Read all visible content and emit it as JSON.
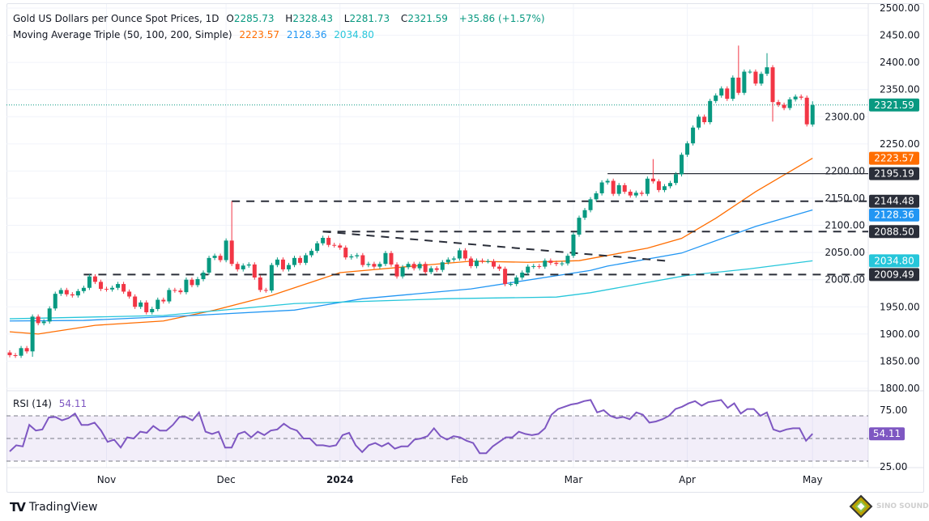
{
  "header": {
    "symbol_title": "Gold US Dollars per Ounce Spot Prices, 1D",
    "open_label": "O",
    "open": "2285.73",
    "high_label": "H",
    "high": "2328.43",
    "low_label": "L",
    "low": "2281.73",
    "close_label": "C",
    "close": "2321.59",
    "change": "+35.86 (+1.57%)",
    "ma_title": "Moving Average Triple (50, 100, 200, Simple)",
    "ma50": "2223.57",
    "ma100": "2128.36",
    "ma200": "2034.80"
  },
  "rsi_header": {
    "title": "RSI (14)",
    "value": "54.11"
  },
  "colors": {
    "up": "#089981",
    "down": "#f23645",
    "ma50": "#ff6d00",
    "ma100": "#2196f3",
    "ma200": "#26c6da",
    "rsi": "#7e57c2",
    "level": "#2a2e39"
  },
  "chart_data": [
    {
      "type": "candlestick",
      "ylim": [
        1800,
        2500
      ],
      "y_ticks": [
        "2500.00",
        "2450.00",
        "2400.00",
        "2350.00",
        "2300.00",
        "2250.00",
        "2200.00",
        "2150.00",
        "2100.00",
        "2050.00",
        "2000.00",
        "1950.00",
        "1900.00",
        "1850.00",
        "1800.00"
      ],
      "x_ticks": [
        {
          "label": "Nov",
          "bar": 17
        },
        {
          "label": "Dec",
          "bar": 38
        },
        {
          "label": "2024",
          "bar": 58,
          "bold": true
        },
        {
          "label": "Feb",
          "bar": 79
        },
        {
          "label": "Mar",
          "bar": 99
        },
        {
          "label": "Apr",
          "bar": 119
        },
        {
          "label": "May",
          "bar": 141
        }
      ],
      "close": [
        1861,
        1860,
        1874,
        1868,
        1932,
        1920,
        1923,
        1947,
        1974,
        1981,
        1973,
        1971,
        1979,
        1985,
        2006,
        1996,
        1983,
        1982,
        1985,
        1992,
        1978,
        1969,
        1950,
        1958,
        1940,
        1946,
        1963,
        1960,
        1981,
        1980,
        1977,
        2000,
        1990,
        2001,
        2013,
        2040,
        2044,
        2036,
        2072,
        2029,
        2019,
        2026,
        2028,
        2004,
        1981,
        1980,
        2027,
        2037,
        2019,
        2027,
        2040,
        2031,
        2045,
        2053,
        2067,
        2077,
        2064,
        2063,
        2059,
        2041,
        2043,
        2045,
        2027,
        2029,
        2024,
        2029,
        2049,
        2028,
        2006,
        2023,
        2029,
        2021,
        2029,
        2014,
        2021,
        2018,
        2032,
        2037,
        2039,
        2054,
        2039,
        2025,
        2035,
        2034,
        2034,
        2024,
        2020,
        1992,
        1992,
        2004,
        2013,
        2024,
        2025,
        2024,
        2035,
        2031,
        2029,
        2030,
        2044,
        2083,
        2114,
        2128,
        2148,
        2159,
        2179,
        2182,
        2158,
        2174,
        2162,
        2155,
        2160,
        2158,
        2186,
        2181,
        2165,
        2172,
        2178,
        2194,
        2230,
        2251,
        2280,
        2300,
        2290,
        2329,
        2339,
        2352,
        2333,
        2372,
        2344,
        2383,
        2383,
        2361,
        2379,
        2391,
        2327,
        2322,
        2316,
        2332,
        2337,
        2335,
        2286,
        2321.59
      ],
      "first_open": 1866,
      "last_bar": {
        "open": 2285.73,
        "high": 2328.43,
        "low": 2281.73,
        "close": 2321.59
      },
      "wick_extremes": {
        "4": {
          "low": 1858
        },
        "38": {
          "high": 2076
        },
        "39": {
          "high": 2144.48
        },
        "113": {
          "high": 2222
        },
        "128": {
          "high": 2431
        },
        "133": {
          "high": 2417
        },
        "134": {
          "low": 2291
        }
      },
      "moving_averages": [
        {
          "name": "50",
          "value_label": "2223.57",
          "color": "#ff6d00",
          "points": [
            [
              0,
              1904
            ],
            [
              5,
              1900
            ],
            [
              15,
              1916
            ],
            [
              27,
              1924
            ],
            [
              36,
              1944
            ],
            [
              46,
              1971
            ],
            [
              50,
              1985
            ],
            [
              58,
              2013
            ],
            [
              72,
              2026
            ],
            [
              81,
              2034
            ],
            [
              91,
              2032
            ],
            [
              100,
              2035
            ],
            [
              112,
              2058
            ],
            [
              118,
              2076
            ],
            [
              124,
              2113
            ],
            [
              131,
              2162
            ],
            [
              141,
              2223.57
            ]
          ]
        },
        {
          "name": "100",
          "value_label": "2128.36",
          "color": "#2196f3",
          "points": [
            [
              0,
              1924
            ],
            [
              13,
              1925
            ],
            [
              32,
              1934
            ],
            [
              50,
              1944
            ],
            [
              62,
              1965
            ],
            [
              81,
              1983
            ],
            [
              102,
              2017
            ],
            [
              105,
              2025
            ],
            [
              118,
              2049
            ],
            [
              131,
              2098
            ],
            [
              141,
              2128.36
            ]
          ]
        },
        {
          "name": "200",
          "value_label": "2034.80",
          "color": "#26c6da",
          "points": [
            [
              0,
              1928
            ],
            [
              27,
              1934
            ],
            [
              50,
              1956
            ],
            [
              77,
              1965
            ],
            [
              96,
              1968
            ],
            [
              102,
              1976
            ],
            [
              119,
              2008
            ],
            [
              130,
              2020
            ],
            [
              141,
              2034.8
            ]
          ]
        }
      ],
      "levels": [
        {
          "value": 2195.19,
          "label": "2195.19",
          "from_bar": 105,
          "style": "solid"
        },
        {
          "value": 2144.48,
          "label": "2144.48",
          "from_bar": 39,
          "style": "dashed"
        },
        {
          "value": 2088.5,
          "label": "2088.50",
          "from_bar": 55,
          "style": "dashed"
        },
        {
          "value": 2009.49,
          "label": "2009.49",
          "from_bar": 13,
          "style": "dashed"
        }
      ],
      "trendline": {
        "from": [
          55,
          2088.5
        ],
        "to": [
          116,
          2034
        ],
        "style": "dashed"
      },
      "price_badges": [
        {
          "label": "2321.59",
          "value": 2321.59,
          "color": "#089981"
        },
        {
          "label": "2223.57",
          "value": 2223.57,
          "color": "#ff6d00"
        },
        {
          "label": "2195.19",
          "value": 2195.19,
          "color": "#2a2e39"
        },
        {
          "label": "2144.48",
          "value": 2144.48,
          "color": "#2a2e39"
        },
        {
          "label": "2128.36",
          "value": 2128.36,
          "color": "#2196f3"
        },
        {
          "label": "2088.50",
          "value": 2088.5,
          "color": "#2a2e39"
        },
        {
          "label": "2034.80",
          "value": 2034.8,
          "color": "#26c6da"
        },
        {
          "label": "2009.49",
          "value": 2009.49,
          "color": "#2a2e39"
        }
      ]
    },
    {
      "type": "line",
      "title": "RSI (14)",
      "y_ticks": [
        "75.00",
        "25.00"
      ],
      "bands": [
        70,
        50,
        30
      ],
      "values": [
        38.6,
        44,
        43,
        62,
        57,
        58,
        68.6,
        69,
        66,
        68,
        72,
        62,
        62,
        64,
        57,
        47,
        49,
        42,
        51,
        50,
        56,
        55,
        61,
        57,
        57,
        62,
        69,
        69,
        66,
        73,
        56,
        54,
        56,
        42,
        42,
        54,
        56,
        51,
        56,
        53,
        57,
        58,
        63,
        59,
        57,
        50,
        50,
        44,
        44,
        43,
        44,
        53,
        55,
        44,
        38,
        44,
        46,
        43,
        46,
        41,
        43,
        43,
        49,
        50,
        52,
        59,
        52,
        49,
        52,
        51,
        48,
        46,
        37,
        37,
        43,
        47,
        51,
        51,
        56,
        54,
        53,
        54,
        59,
        71,
        76,
        78,
        80,
        81,
        83,
        84,
        73,
        75,
        70,
        68,
        69,
        67,
        73,
        71,
        64,
        65,
        67,
        70,
        76,
        78,
        81,
        83,
        79,
        82,
        83,
        84,
        77,
        81,
        72,
        76,
        76,
        70,
        73,
        58,
        56,
        58,
        59,
        59,
        48,
        54.11
      ],
      "last_label": "54.11"
    }
  ],
  "footer": {
    "brand": "TradingView",
    "watermark": "SINO SOUND"
  }
}
